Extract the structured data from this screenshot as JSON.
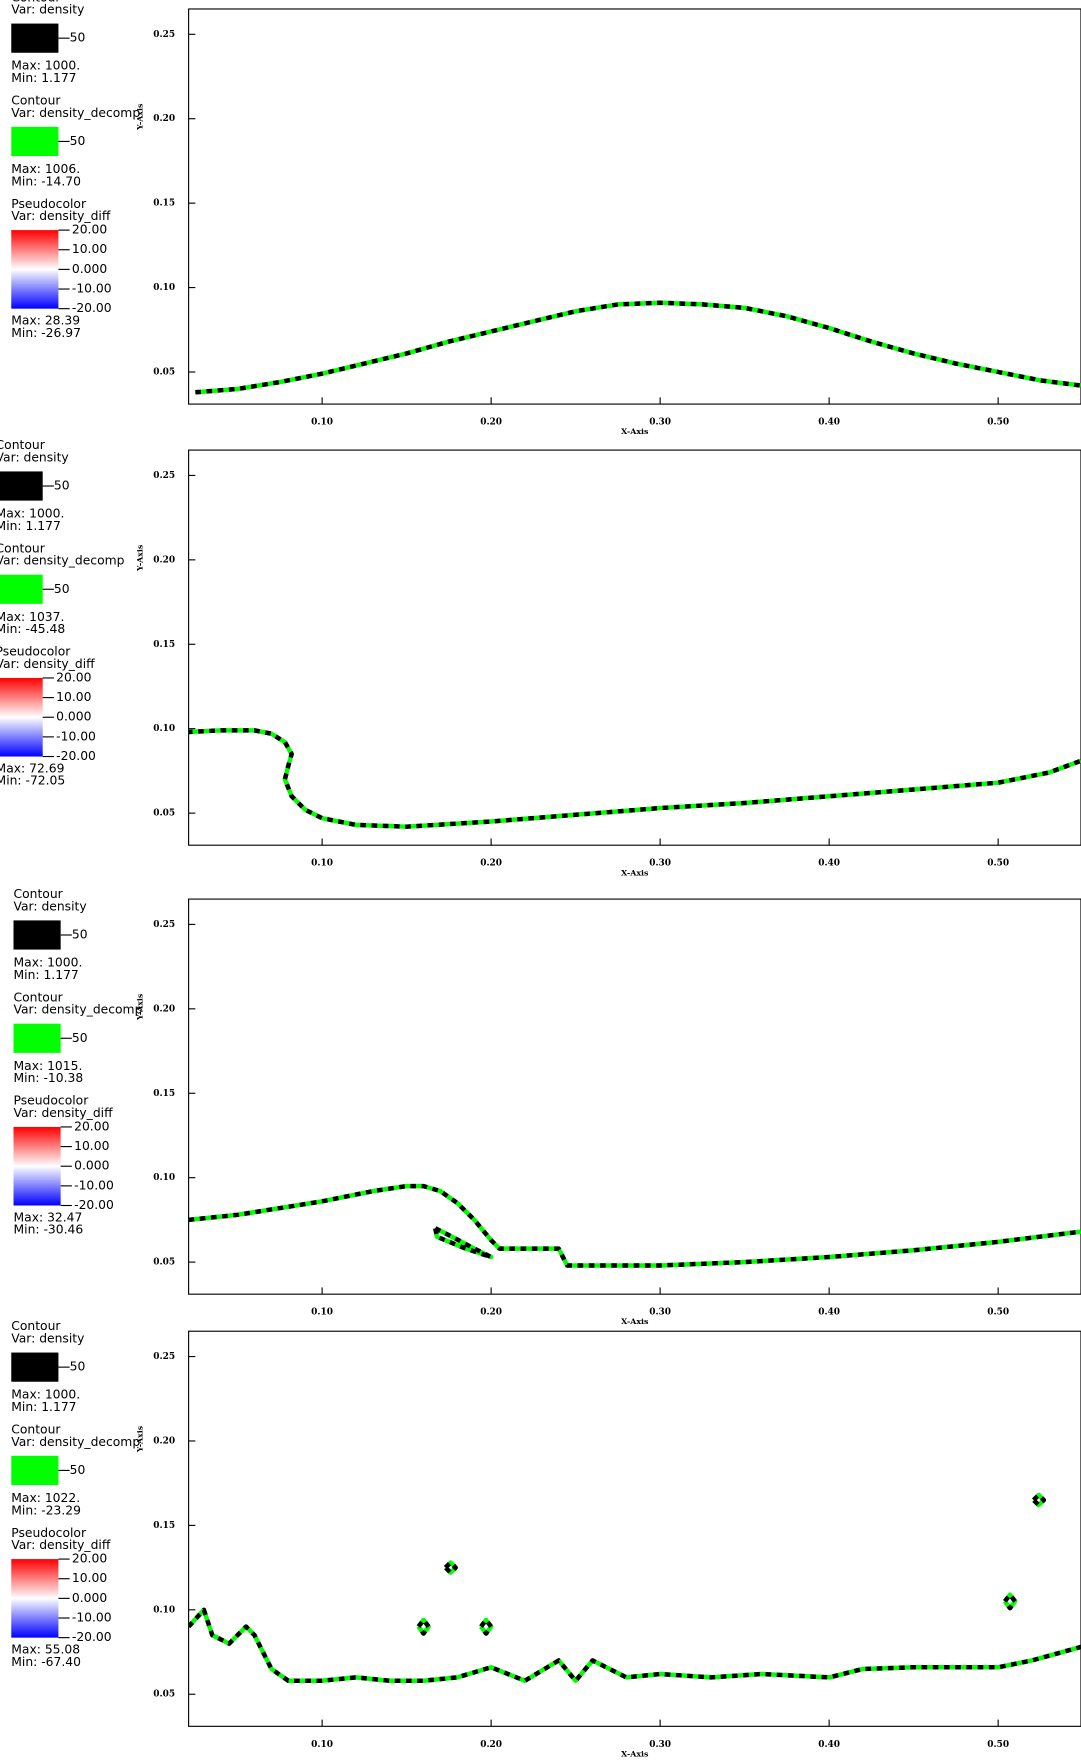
{
  "chart_data": [
    {
      "type": "contour",
      "xlabel": "X-Axis",
      "ylabel": "Y-Axis",
      "xlim": [
        0.021,
        0.549
      ],
      "ylim": [
        0.031,
        0.265
      ],
      "xticks": [
        {
          "value": 0.1,
          "label": "0.10"
        },
        {
          "value": 0.2,
          "label": "0.20"
        },
        {
          "value": 0.3,
          "label": "0.30"
        },
        {
          "value": 0.4,
          "label": "0.40"
        },
        {
          "value": 0.5,
          "label": "0.50"
        }
      ],
      "yticks": [
        0.05,
        {
          "value": 0.1,
          "label": "0.10"
        },
        0.15,
        {
          "value": 0.2,
          "label": "0.20"
        },
        0.25
      ],
      "legends": [
        {
          "title": "Contour",
          "var": "Var: density",
          "color": "#000000",
          "level": 50,
          "max": "Max:  1000.",
          "min": "Min:  1.177"
        },
        {
          "title": "Contour",
          "var": "Var: density_decomp",
          "color": "#00ff00",
          "level": 50,
          "max": "Max:  1006.",
          "min": "Min:  -14.70"
        },
        {
          "title": "Pseudocolor",
          "var": "Var: density_diff",
          "max": "Max:  28.39",
          "min": "Min:  -26.97",
          "colorbar": {
            "lim": [
              -20,
              20
            ],
            "ticks": [
              {
                "value": 20,
                "label": "20.00"
              },
              {
                "value": 10,
                "label": "10.00"
              },
              {
                "value": 0,
                "label": "0.000"
              },
              {
                "value": -10,
                "label": "-10.00"
              },
              {
                "value": -20,
                "label": "-20.00"
              }
            ]
          }
        }
      ],
      "series": [
        {
          "name": "density",
          "color": "#000000",
          "x": [
            0.025,
            0.05,
            0.075,
            0.1,
            0.125,
            0.15,
            0.175,
            0.2,
            0.225,
            0.25,
            0.275,
            0.3,
            0.325,
            0.35,
            0.375,
            0.4,
            0.425,
            0.45,
            0.475,
            0.5,
            0.525,
            0.549
          ],
          "y": [
            0.038,
            0.04,
            0.044,
            0.049,
            0.055,
            0.061,
            0.068,
            0.074,
            0.08,
            0.086,
            0.09,
            0.091,
            0.09,
            0.088,
            0.083,
            0.076,
            0.068,
            0.061,
            0.055,
            0.05,
            0.045,
            0.042
          ]
        },
        {
          "name": "density_decomp",
          "color": "#00ff00",
          "x": [
            0.025,
            0.05,
            0.075,
            0.1,
            0.125,
            0.15,
            0.175,
            0.2,
            0.225,
            0.25,
            0.275,
            0.3,
            0.325,
            0.35,
            0.375,
            0.4,
            0.425,
            0.45,
            0.475,
            0.5,
            0.525,
            0.549
          ],
          "y": [
            0.038,
            0.04,
            0.044,
            0.049,
            0.055,
            0.061,
            0.068,
            0.074,
            0.08,
            0.086,
            0.09,
            0.091,
            0.09,
            0.088,
            0.083,
            0.076,
            0.068,
            0.061,
            0.055,
            0.05,
            0.045,
            0.042
          ]
        }
      ]
    },
    {
      "type": "contour",
      "xlabel": "X-Axis",
      "ylabel": "Y-Axis",
      "xlim": [
        0.021,
        0.549
      ],
      "ylim": [
        0.031,
        0.265
      ],
      "xticks": [
        {
          "value": 0.1,
          "label": "0.10"
        },
        {
          "value": 0.2,
          "label": "0.20"
        },
        {
          "value": 0.3,
          "label": "0.30"
        },
        {
          "value": 0.4,
          "label": "0.40"
        },
        {
          "value": 0.5,
          "label": "0.50"
        }
      ],
      "yticks": [
        0.05,
        {
          "value": 0.1,
          "label": "0.10"
        },
        0.15,
        {
          "value": 0.2,
          "label": "0.20"
        },
        0.25
      ],
      "legends": [
        {
          "title": "Contour",
          "var": "Var: density",
          "color": "#000000",
          "level": 50,
          "max": "Max:  1000.",
          "min": "Min:  1.177"
        },
        {
          "title": "Contour",
          "var": "Var: density_decomp",
          "color": "#00ff00",
          "level": 50,
          "max": "Max:  1037.",
          "min": "Min:  -45.48"
        },
        {
          "title": "Pseudocolor",
          "var": "Var: density_diff",
          "max": "Max:  72.69",
          "min": "Min:  -72.05",
          "colorbar": {
            "lim": [
              -20,
              20
            ],
            "ticks": [
              {
                "value": 20,
                "label": "20.00"
              },
              {
                "value": 10,
                "label": "10.00"
              },
              {
                "value": 0,
                "label": "0.000"
              },
              {
                "value": -10,
                "label": "-10.00"
              },
              {
                "value": -20,
                "label": "-20.00"
              }
            ]
          }
        }
      ],
      "series": [
        {
          "name": "density",
          "color": "#000000",
          "x": [
            0.02,
            0.04,
            0.06,
            0.07,
            0.078,
            0.082,
            0.08,
            0.078,
            0.082,
            0.09,
            0.1,
            0.12,
            0.15,
            0.2,
            0.25,
            0.3,
            0.35,
            0.4,
            0.45,
            0.5,
            0.53,
            0.549
          ],
          "y": [
            0.098,
            0.099,
            0.099,
            0.097,
            0.092,
            0.085,
            0.078,
            0.07,
            0.06,
            0.052,
            0.047,
            0.043,
            0.042,
            0.045,
            0.049,
            0.053,
            0.056,
            0.06,
            0.064,
            0.068,
            0.074,
            0.081
          ]
        },
        {
          "name": "density_decomp",
          "color": "#00ff00",
          "x": [
            0.02,
            0.04,
            0.06,
            0.07,
            0.078,
            0.082,
            0.08,
            0.078,
            0.082,
            0.09,
            0.1,
            0.12,
            0.15,
            0.2,
            0.25,
            0.3,
            0.35,
            0.4,
            0.45,
            0.5,
            0.53,
            0.549
          ],
          "y": [
            0.098,
            0.099,
            0.099,
            0.097,
            0.092,
            0.085,
            0.078,
            0.07,
            0.06,
            0.052,
            0.047,
            0.043,
            0.042,
            0.045,
            0.049,
            0.053,
            0.056,
            0.06,
            0.064,
            0.068,
            0.074,
            0.081
          ]
        }
      ]
    },
    {
      "type": "contour",
      "xlabel": "X-Axis",
      "ylabel": "Y-Axis",
      "xlim": [
        0.021,
        0.549
      ],
      "ylim": [
        0.031,
        0.265
      ],
      "xticks": [
        {
          "value": 0.1,
          "label": "0.10"
        },
        {
          "value": 0.2,
          "label": "0.20"
        },
        {
          "value": 0.3,
          "label": "0.30"
        },
        {
          "value": 0.4,
          "label": "0.40"
        },
        {
          "value": 0.5,
          "label": "0.50"
        }
      ],
      "yticks": [
        0.05,
        {
          "value": 0.1,
          "label": "0.10"
        },
        0.15,
        {
          "value": 0.2,
          "label": "0.20"
        },
        0.25
      ],
      "legends": [
        {
          "title": "Contour",
          "var": "Var: density",
          "color": "#000000",
          "level": 50,
          "max": "Max:  1000.",
          "min": "Min:  1.177"
        },
        {
          "title": "Contour",
          "var": "Var: density_decomp",
          "color": "#00ff00",
          "level": 50,
          "max": "Max:  1015.",
          "min": "Min:  -10.38"
        },
        {
          "title": "Pseudocolor",
          "var": "Var: density_diff",
          "max": "Max:  32.47",
          "min": "Min:  -30.46",
          "colorbar": {
            "lim": [
              -20,
              20
            ],
            "ticks": [
              {
                "value": 20,
                "label": "20.00"
              },
              {
                "value": 10,
                "label": "10.00"
              },
              {
                "value": 0,
                "label": "0.000"
              },
              {
                "value": -10,
                "label": "-10.00"
              },
              {
                "value": -20,
                "label": "-20.00"
              }
            ]
          }
        }
      ],
      "series": [
        {
          "name": "density",
          "color": "#000000",
          "x": [
            0.021,
            0.05,
            0.1,
            0.13,
            0.15,
            0.16,
            0.17,
            0.18,
            0.19,
            0.2,
            0.205,
            0.22,
            0.24,
            0.245,
            0.3,
            0.35,
            0.4,
            0.45,
            0.5,
            0.549,
            null,
            0.167,
            0.175,
            0.19,
            0.2,
            0.185,
            0.168,
            0.167
          ],
          "y": [
            0.075,
            0.078,
            0.086,
            0.092,
            0.095,
            0.095,
            0.092,
            0.085,
            0.075,
            0.063,
            0.058,
            0.058,
            0.058,
            0.048,
            0.048,
            0.05,
            0.053,
            0.057,
            0.062,
            0.068,
            null,
            0.07,
            0.066,
            0.058,
            0.053,
            0.058,
            0.065,
            0.07
          ]
        },
        {
          "name": "density_decomp",
          "color": "#00ff00",
          "x": [
            0.021,
            0.05,
            0.1,
            0.13,
            0.15,
            0.16,
            0.17,
            0.18,
            0.19,
            0.2,
            0.205,
            0.22,
            0.24,
            0.245,
            0.3,
            0.35,
            0.4,
            0.45,
            0.5,
            0.549,
            null,
            0.167,
            0.175,
            0.19,
            0.2,
            0.185,
            0.168,
            0.167
          ],
          "y": [
            0.075,
            0.078,
            0.086,
            0.092,
            0.095,
            0.095,
            0.092,
            0.085,
            0.075,
            0.063,
            0.058,
            0.058,
            0.058,
            0.048,
            0.048,
            0.05,
            0.053,
            0.057,
            0.062,
            0.068,
            null,
            0.07,
            0.066,
            0.058,
            0.053,
            0.058,
            0.065,
            0.07
          ]
        }
      ]
    },
    {
      "type": "contour",
      "xlabel": "X-Axis",
      "ylabel": "Y-Axis",
      "xlim": [
        0.021,
        0.549
      ],
      "ylim": [
        0.031,
        0.265
      ],
      "xticks": [
        {
          "value": 0.1,
          "label": "0.10"
        },
        {
          "value": 0.2,
          "label": "0.20"
        },
        {
          "value": 0.3,
          "label": "0.30"
        },
        {
          "value": 0.4,
          "label": "0.40"
        },
        {
          "value": 0.5,
          "label": "0.50"
        }
      ],
      "yticks": [
        0.05,
        {
          "value": 0.1,
          "label": "0.10"
        },
        0.15,
        {
          "value": 0.2,
          "label": "0.20"
        },
        0.25
      ],
      "legends": [
        {
          "title": "Contour",
          "var": "Var: density",
          "color": "#000000",
          "level": 50,
          "max": "Max:  1000.",
          "min": "Min:  1.177"
        },
        {
          "title": "Contour",
          "var": "Var: density_decomp",
          "color": "#00ff00",
          "level": 50,
          "max": "Max:  1022.",
          "min": "Min:  -23.29"
        },
        {
          "title": "Pseudocolor",
          "var": "Var: density_diff",
          "max": "Max:  55.08",
          "min": "Min:  -67.40",
          "colorbar": {
            "lim": [
              -20,
              20
            ],
            "ticks": [
              {
                "value": 20,
                "label": "20.00"
              },
              {
                "value": 10,
                "label": "10.00"
              },
              {
                "value": 0,
                "label": "0.000"
              },
              {
                "value": -10,
                "label": "-10.00"
              },
              {
                "value": -20,
                "label": "-20.00"
              }
            ]
          }
        }
      ],
      "series": [
        {
          "name": "density",
          "color": "#000000",
          "x": [
            0.021,
            0.03,
            0.035,
            0.045,
            0.055,
            0.06,
            0.07,
            0.08,
            0.1,
            0.12,
            0.14,
            0.16,
            0.18,
            0.2,
            0.22,
            0.24,
            0.25,
            0.26,
            0.28,
            0.3,
            0.33,
            0.36,
            0.4,
            0.42,
            0.45,
            0.48,
            0.5,
            0.52,
            0.549,
            null,
            0.157,
            0.16,
            0.163,
            0.16,
            0.157,
            null,
            0.194,
            0.197,
            0.2,
            0.197,
            0.194,
            null,
            0.173,
            0.176,
            0.179,
            0.176,
            0.173,
            null,
            0.504,
            0.507,
            0.51,
            0.507,
            0.504,
            null,
            0.521,
            0.524,
            0.527,
            0.524,
            0.521
          ],
          "y": [
            0.09,
            0.1,
            0.085,
            0.08,
            0.09,
            0.085,
            0.065,
            0.058,
            0.058,
            0.06,
            0.058,
            0.058,
            0.06,
            0.066,
            0.058,
            0.07,
            0.058,
            0.07,
            0.06,
            0.062,
            0.06,
            0.062,
            0.06,
            0.065,
            0.066,
            0.066,
            0.066,
            0.07,
            0.078,
            null,
            0.09,
            0.094,
            0.09,
            0.086,
            0.09,
            null,
            0.09,
            0.094,
            0.09,
            0.086,
            0.09,
            null,
            0.125,
            0.128,
            0.125,
            0.122,
            0.125,
            null,
            0.105,
            0.109,
            0.105,
            0.101,
            0.105,
            null,
            0.165,
            0.168,
            0.165,
            0.162,
            0.165
          ]
        },
        {
          "name": "density_decomp",
          "color": "#00ff00",
          "x": [
            0.021,
            0.03,
            0.035,
            0.045,
            0.055,
            0.06,
            0.07,
            0.08,
            0.1,
            0.12,
            0.14,
            0.16,
            0.18,
            0.2,
            0.22,
            0.24,
            0.25,
            0.26,
            0.28,
            0.3,
            0.33,
            0.36,
            0.4,
            0.42,
            0.45,
            0.48,
            0.5,
            0.52,
            0.549,
            null,
            0.157,
            0.16,
            0.163,
            0.16,
            0.157,
            null,
            0.194,
            0.197,
            0.2,
            0.197,
            0.194,
            null,
            0.173,
            0.176,
            0.179,
            0.176,
            0.173,
            null,
            0.504,
            0.507,
            0.51,
            0.507,
            0.504,
            null,
            0.521,
            0.524,
            0.527,
            0.524,
            0.521
          ],
          "y": [
            0.09,
            0.1,
            0.085,
            0.08,
            0.09,
            0.085,
            0.065,
            0.058,
            0.058,
            0.06,
            0.058,
            0.058,
            0.06,
            0.066,
            0.058,
            0.07,
            0.058,
            0.07,
            0.06,
            0.062,
            0.06,
            0.062,
            0.06,
            0.065,
            0.066,
            0.066,
            0.066,
            0.07,
            0.078,
            null,
            0.09,
            0.094,
            0.09,
            0.086,
            0.09,
            null,
            0.09,
            0.094,
            0.09,
            0.086,
            0.09,
            null,
            0.125,
            0.128,
            0.125,
            0.122,
            0.125,
            null,
            0.105,
            0.109,
            0.105,
            0.101,
            0.105,
            null,
            0.165,
            0.168,
            0.165,
            0.162,
            0.165
          ]
        }
      ]
    }
  ]
}
